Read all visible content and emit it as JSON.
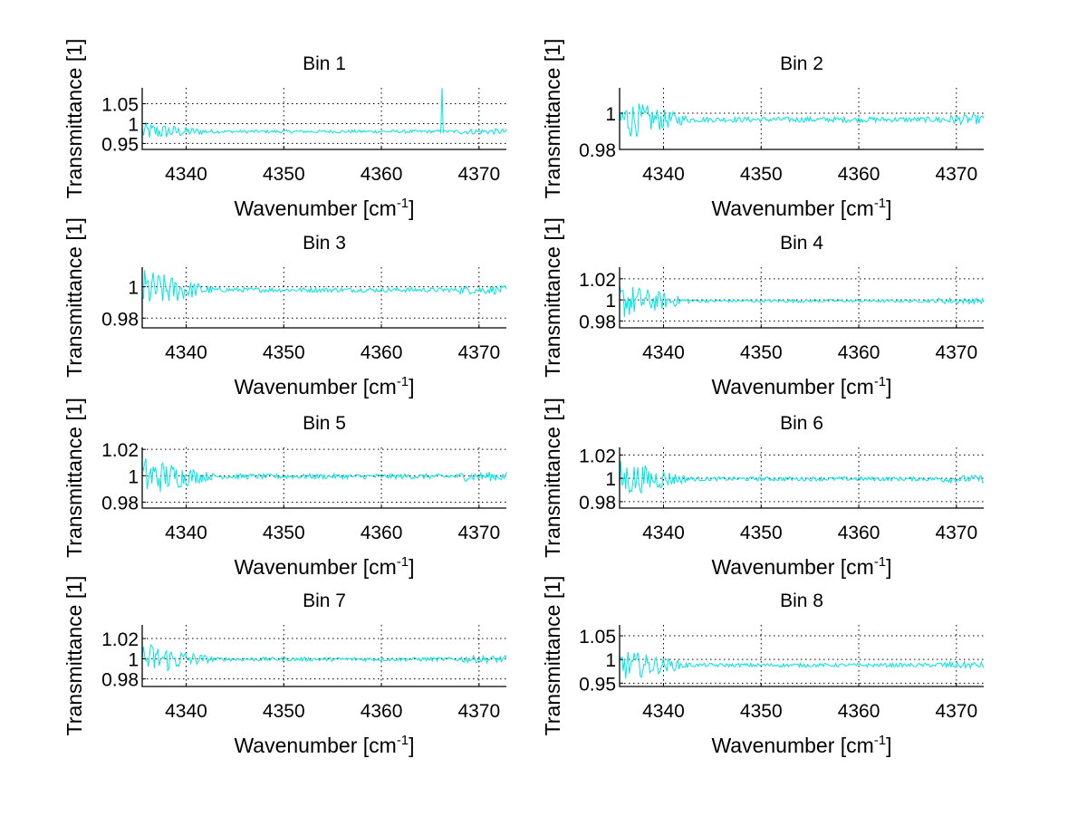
{
  "chart_data": [
    {
      "type": "line",
      "title": "Bin 1",
      "xlabel": "Wavenumber [cm^-1]",
      "ylabel": "Transmittance [1]",
      "xlim": [
        4335.5,
        4372.8
      ],
      "ylim": [
        0.935,
        1.09
      ],
      "xticks": [
        4340,
        4350,
        4360,
        4370
      ],
      "yticks": [
        0.95,
        1,
        1.05
      ],
      "ytick_labels": [
        "0.95",
        "1",
        "1.05"
      ],
      "grid": true,
      "series": [
        {
          "name": "Bin 1",
          "color": "#00e5e5",
          "noise_start": 0.025,
          "noise_end": 0.004,
          "baseline": 0.98,
          "spike": {
            "x": 4366.2,
            "y": 1.09
          }
        }
      ]
    },
    {
      "type": "line",
      "title": "Bin 2",
      "xlabel": "Wavenumber [cm^-1]",
      "ylabel": "Transmittance [1]",
      "xlim": [
        4335.5,
        4372.8
      ],
      "ylim": [
        0.98,
        1.014
      ],
      "xticks": [
        4340,
        4350,
        4360,
        4370
      ],
      "yticks": [
        0.98,
        1
      ],
      "ytick_labels": [
        "0.98",
        "1"
      ],
      "grid": true,
      "series": [
        {
          "name": "Bin 2",
          "color": "#00e5e5",
          "noise_start": 0.012,
          "noise_end": 0.0015,
          "baseline": 0.9965
        }
      ]
    },
    {
      "type": "line",
      "title": "Bin 3",
      "xlabel": "Wavenumber [cm^-1]",
      "ylabel": "Transmittance [1]",
      "xlim": [
        4335.5,
        4372.8
      ],
      "ylim": [
        0.9738,
        1.0125
      ],
      "xticks": [
        4340,
        4350,
        4360,
        4370
      ],
      "yticks": [
        0.98,
        1
      ],
      "ytick_labels": [
        "0.98",
        "1"
      ],
      "grid": true,
      "series": [
        {
          "name": "Bin 3",
          "color": "#00e5e5",
          "noise_start": 0.014,
          "noise_end": 0.0015,
          "baseline": 0.998
        }
      ]
    },
    {
      "type": "line",
      "title": "Bin 4",
      "xlabel": "Wavenumber [cm^-1]",
      "ylabel": "Transmittance [1]",
      "xlim": [
        4335.5,
        4372.8
      ],
      "ylim": [
        0.9735,
        1.031
      ],
      "xticks": [
        4340,
        4350,
        4360,
        4370
      ],
      "yticks": [
        0.98,
        1,
        1.02
      ],
      "ytick_labels": [
        "0.98",
        "1",
        "1.02"
      ],
      "grid": true,
      "series": [
        {
          "name": "Bin 4",
          "color": "#00e5e5",
          "noise_start": 0.018,
          "noise_end": 0.0015,
          "baseline": 0.999
        }
      ]
    },
    {
      "type": "line",
      "title": "Bin 5",
      "xlabel": "Wavenumber [cm^-1]",
      "ylabel": "Transmittance [1]",
      "xlim": [
        4335.5,
        4372.8
      ],
      "ylim": [
        0.9755,
        1.0215
      ],
      "xticks": [
        4340,
        4350,
        4360,
        4370
      ],
      "yticks": [
        0.98,
        1,
        1.02
      ],
      "ytick_labels": [
        "0.98",
        "1",
        "1.02"
      ],
      "grid": true,
      "series": [
        {
          "name": "Bin 5",
          "color": "#00e5e5",
          "noise_start": 0.016,
          "noise_end": 0.002,
          "baseline": 0.9995
        }
      ]
    },
    {
      "type": "line",
      "title": "Bin 6",
      "xlabel": "Wavenumber [cm^-1]",
      "ylabel": "Transmittance [1]",
      "xlim": [
        4335.5,
        4372.8
      ],
      "ylim": [
        0.9745,
        1.0265
      ],
      "xticks": [
        4340,
        4350,
        4360,
        4370
      ],
      "yticks": [
        0.98,
        1,
        1.02
      ],
      "ytick_labels": [
        "0.98",
        "1",
        "1.02"
      ],
      "grid": true,
      "series": [
        {
          "name": "Bin 6",
          "color": "#00e5e5",
          "noise_start": 0.017,
          "noise_end": 0.0018,
          "baseline": 0.9995
        }
      ]
    },
    {
      "type": "line",
      "title": "Bin 7",
      "xlabel": "Wavenumber [cm^-1]",
      "ylabel": "Transmittance [1]",
      "xlim": [
        4335.5,
        4372.8
      ],
      "ylim": [
        0.9725,
        1.0335
      ],
      "xticks": [
        4340,
        4350,
        4360,
        4370
      ],
      "yticks": [
        0.98,
        1,
        1.02
      ],
      "ytick_labels": [
        "0.98",
        "1",
        "1.02"
      ],
      "grid": true,
      "series": [
        {
          "name": "Bin 7",
          "color": "#00e5e5",
          "noise_start": 0.018,
          "noise_end": 0.002,
          "baseline": 0.9995
        }
      ]
    },
    {
      "type": "line",
      "title": "Bin 8",
      "xlabel": "Wavenumber [cm^-1]",
      "ylabel": "Transmittance [1]",
      "xlim": [
        4335.5,
        4372.8
      ],
      "ylim": [
        0.943,
        1.073
      ],
      "xticks": [
        4340,
        4350,
        4360,
        4370
      ],
      "yticks": [
        0.95,
        1,
        1.05
      ],
      "ytick_labels": [
        "0.95",
        "1",
        "1.05"
      ],
      "grid": true,
      "series": [
        {
          "name": "Bin 8",
          "color": "#00e5e5",
          "noise_start": 0.035,
          "noise_end": 0.004,
          "baseline": 0.988
        }
      ]
    }
  ],
  "xlabel_text": "Wavenumber [cm",
  "xlabel_sup": "-1",
  "xlabel_end": "]",
  "ylabel_text": "Transmittance [1]"
}
